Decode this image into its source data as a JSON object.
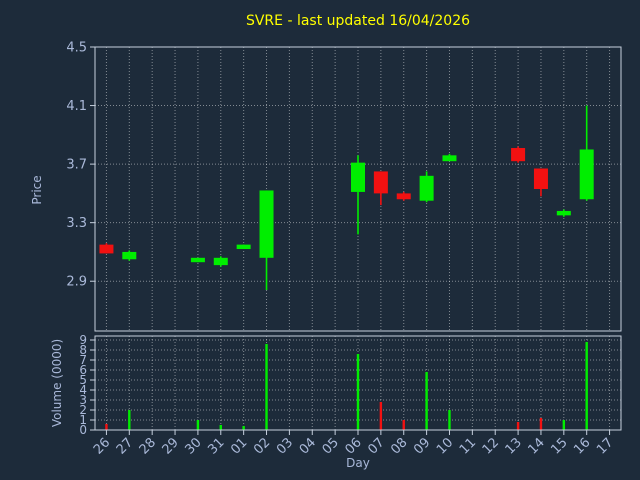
{
  "window": {
    "title": "SVRE - last updated 16/04/2026"
  },
  "colors": {
    "background": "#1d2b3a",
    "title": "#ffff00",
    "axis_label": "#a9b8d9",
    "tick_label": "#aab9d9",
    "spine": "#c6d0de",
    "grid": "#ffffff",
    "up": "#00ee00",
    "down": "#f21111"
  },
  "chart_data": [
    {
      "type": "candlestick",
      "title": "SVRE - last updated 16/04/2026",
      "xlabel": "Day",
      "ylabel": "Price",
      "grid": true,
      "x_categories": [
        "26",
        "27",
        "28",
        "29",
        "30",
        "31",
        "01",
        "02",
        "03",
        "04",
        "05",
        "06",
        "07",
        "08",
        "09",
        "10",
        "11",
        "12",
        "13",
        "14",
        "15",
        "16",
        "17"
      ],
      "y_ticks": [
        2.9,
        3.3,
        3.7,
        4.1,
        4.5
      ],
      "ylim": [
        2.56,
        4.5
      ],
      "candles": [
        {
          "x": "26",
          "open": 3.15,
          "high": 3.16,
          "low": 3.09,
          "close": 3.09
        },
        {
          "x": "27",
          "open": 3.05,
          "high": 3.11,
          "low": 3.04,
          "close": 3.1
        },
        {
          "x": "30",
          "open": 3.03,
          "high": 3.06,
          "low": 3.03,
          "close": 3.06
        },
        {
          "x": "31",
          "open": 3.01,
          "high": 3.07,
          "low": 3.0,
          "close": 3.06
        },
        {
          "x": "01",
          "open": 3.12,
          "high": 3.15,
          "low": 3.12,
          "close": 3.15
        },
        {
          "x": "02",
          "open": 3.06,
          "high": 3.52,
          "low": 2.84,
          "close": 3.52
        },
        {
          "x": "06",
          "open": 3.51,
          "high": 3.76,
          "low": 3.22,
          "close": 3.71
        },
        {
          "x": "07",
          "open": 3.65,
          "high": 3.65,
          "low": 3.42,
          "close": 3.5
        },
        {
          "x": "08",
          "open": 3.5,
          "high": 3.51,
          "low": 3.45,
          "close": 3.46
        },
        {
          "x": "09",
          "open": 3.45,
          "high": 3.65,
          "low": 3.44,
          "close": 3.62
        },
        {
          "x": "10",
          "open": 3.72,
          "high": 3.77,
          "low": 3.72,
          "close": 3.76
        },
        {
          "x": "13",
          "open": 3.81,
          "high": 3.82,
          "low": 3.71,
          "close": 3.72
        },
        {
          "x": "14",
          "open": 3.67,
          "high": 3.67,
          "low": 3.48,
          "close": 3.53
        },
        {
          "x": "15",
          "open": 3.35,
          "high": 3.39,
          "low": 3.34,
          "close": 3.38
        },
        {
          "x": "16",
          "open": 3.46,
          "high": 4.1,
          "low": 3.45,
          "close": 3.8
        }
      ]
    },
    {
      "type": "bar",
      "xlabel": "Day",
      "ylabel": "Volume (0000)",
      "grid": true,
      "y_ticks": [
        0,
        1,
        2,
        3,
        4,
        5,
        6,
        7,
        8,
        9
      ],
      "ylim": [
        0,
        9.4
      ],
      "bars": [
        {
          "x": "26",
          "value": 0.6,
          "direction": "down"
        },
        {
          "x": "27",
          "value": 2.0,
          "direction": "up"
        },
        {
          "x": "30",
          "value": 1.0,
          "direction": "up"
        },
        {
          "x": "31",
          "value": 0.5,
          "direction": "up"
        },
        {
          "x": "01",
          "value": 0.4,
          "direction": "up"
        },
        {
          "x": "02",
          "value": 8.6,
          "direction": "up"
        },
        {
          "x": "06",
          "value": 7.6,
          "direction": "up"
        },
        {
          "x": "07",
          "value": 2.8,
          "direction": "down"
        },
        {
          "x": "08",
          "value": 1.0,
          "direction": "down"
        },
        {
          "x": "09",
          "value": 5.8,
          "direction": "up"
        },
        {
          "x": "10",
          "value": 2.0,
          "direction": "up"
        },
        {
          "x": "13",
          "value": 0.8,
          "direction": "down"
        },
        {
          "x": "14",
          "value": 1.2,
          "direction": "down"
        },
        {
          "x": "15",
          "value": 1.0,
          "direction": "up"
        },
        {
          "x": "16",
          "value": 8.8,
          "direction": "up"
        }
      ]
    }
  ]
}
